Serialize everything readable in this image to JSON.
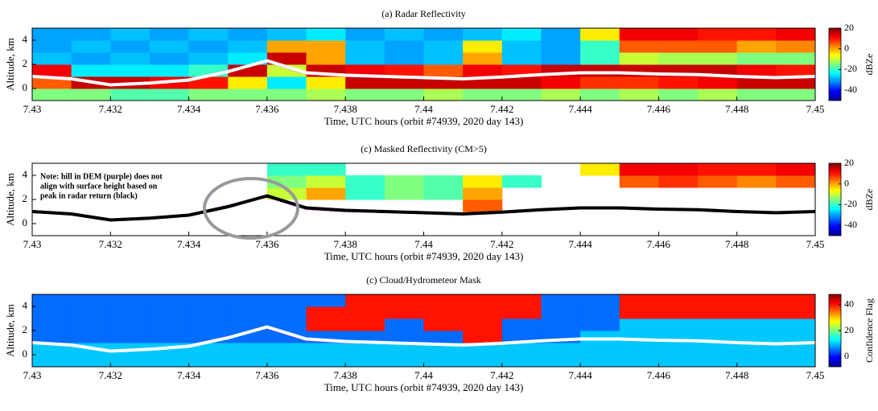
{
  "chart_data": [
    {
      "type": "heatmap",
      "title": "(a) Radar Reflectivity",
      "xlabel": "Time, UTC hours (orbit #74939, 2020 day 143)",
      "ylabel": "Altitude, km",
      "colorbar_label": "dBZe",
      "xlim": [
        7.43,
        7.45
      ],
      "xticks": [
        7.43,
        7.432,
        7.434,
        7.436,
        7.438,
        7.44,
        7.442,
        7.444,
        7.446,
        7.448,
        7.45
      ],
      "ylim": [
        -1,
        5
      ],
      "yticks": [
        0,
        2,
        4
      ],
      "clim": [
        -50,
        20
      ],
      "cticks": [
        -40,
        -20,
        0,
        20
      ],
      "xbins": [
        7.43,
        7.431,
        7.432,
        7.433,
        7.434,
        7.435,
        7.436,
        7.437,
        7.438,
        7.439,
        7.44,
        7.441,
        7.442,
        7.443,
        7.444,
        7.445,
        7.446,
        7.447,
        7.448,
        7.449,
        7.45
      ],
      "ybins": [
        -1,
        0,
        1,
        2,
        3,
        4,
        5
      ],
      "z": [
        [
          -15,
          -15,
          -18,
          -18,
          -15,
          -15,
          -15,
          -12,
          -15,
          -15,
          -12,
          -15,
          -15,
          -12,
          -15,
          -12,
          -15,
          -12,
          -15,
          -15
        ],
        [
          5,
          15,
          15,
          12,
          10,
          -5,
          -25,
          -5,
          15,
          15,
          15,
          15,
          15,
          12,
          8,
          8,
          10,
          12,
          15,
          15
        ],
        [
          12,
          -25,
          -25,
          -25,
          -20,
          15,
          -10,
          15,
          12,
          10,
          5,
          12,
          10,
          15,
          15,
          15,
          15,
          15,
          12,
          10
        ],
        [
          -28,
          -30,
          -28,
          -30,
          -28,
          -25,
          15,
          0,
          -28,
          -30,
          -28,
          0,
          -28,
          -30,
          -20,
          -10,
          -12,
          -12,
          -15,
          -15
        ],
        [
          -30,
          -28,
          -30,
          -28,
          -30,
          -28,
          0,
          0,
          -28,
          -30,
          -28,
          -5,
          -28,
          -30,
          -20,
          5,
          5,
          5,
          0,
          2
        ],
        [
          -30,
          -30,
          -28,
          -30,
          -28,
          -30,
          -28,
          -25,
          -30,
          -28,
          -30,
          -28,
          -25,
          -30,
          -5,
          12,
          12,
          10,
          10,
          12
        ]
      ],
      "x": [
        7.43,
        7.431,
        7.432,
        7.433,
        7.434,
        7.435,
        7.436,
        7.437,
        7.438,
        7.439,
        7.44,
        7.441,
        7.442,
        7.443,
        7.444,
        7.445,
        7.446,
        7.447,
        7.448,
        7.449,
        7.45
      ],
      "series": [
        {
          "color": "#ff00ff",
          "linestyle": "dotted",
          "values": [
            0.95,
            0.75,
            0.35,
            0.4,
            0.75,
            1.5,
            2.2,
            1.2,
            1.0,
            0.95,
            0.9,
            0.85,
            0.95,
            1.1,
            1.25,
            1.25,
            1.15,
            1.1,
            0.95,
            0.9,
            0.95
          ]
        },
        {
          "color": "#ffffff",
          "linestyle": "solid",
          "values": [
            1.0,
            0.8,
            0.3,
            0.45,
            0.7,
            1.4,
            2.3,
            1.3,
            1.1,
            1.0,
            0.9,
            0.8,
            0.95,
            1.15,
            1.3,
            1.3,
            1.2,
            1.15,
            1.0,
            0.9,
            1.0
          ]
        }
      ]
    },
    {
      "type": "heatmap",
      "title": "(c) Masked Reflectivity (CM>5)",
      "xlabel": "Time, UTC hours (orbit #74939, 2020 day 143)",
      "ylabel": "Altitude, km",
      "colorbar_label": "dBZe",
      "annotation": [
        "Note: hill in DEM (purple) does not",
        "align with surface height based on",
        "peak in radar return (black)"
      ],
      "xlim": [
        7.43,
        7.45
      ],
      "xticks": [
        7.43,
        7.432,
        7.434,
        7.436,
        7.438,
        7.44,
        7.442,
        7.444,
        7.446,
        7.448,
        7.45
      ],
      "ylim": [
        -1,
        5
      ],
      "yticks": [
        0,
        2,
        4
      ],
      "clim": [
        -50,
        20
      ],
      "cticks": [
        -40,
        -20,
        0,
        20
      ],
      "xbins": [
        7.43,
        7.431,
        7.432,
        7.433,
        7.434,
        7.435,
        7.436,
        7.437,
        7.438,
        7.439,
        7.44,
        7.441,
        7.442,
        7.443,
        7.444,
        7.445,
        7.446,
        7.447,
        7.448,
        7.449,
        7.45
      ],
      "ybins": [
        -1,
        0,
        1,
        2,
        3,
        4,
        5
      ],
      "z": [
        [
          null,
          null,
          null,
          null,
          null,
          null,
          null,
          null,
          null,
          null,
          null,
          null,
          null,
          null,
          null,
          null,
          null,
          null,
          null,
          null
        ],
        [
          null,
          null,
          null,
          null,
          null,
          null,
          null,
          null,
          null,
          null,
          null,
          null,
          null,
          null,
          null,
          null,
          null,
          null,
          null,
          null
        ],
        [
          null,
          null,
          null,
          null,
          null,
          null,
          null,
          null,
          null,
          null,
          null,
          5,
          null,
          null,
          null,
          null,
          null,
          null,
          null,
          null
        ],
        [
          null,
          null,
          null,
          null,
          null,
          null,
          -10,
          0,
          -20,
          -15,
          -18,
          0,
          null,
          null,
          null,
          null,
          null,
          null,
          null,
          null
        ],
        [
          null,
          null,
          null,
          null,
          null,
          null,
          -15,
          -10,
          -20,
          -15,
          -18,
          -5,
          -20,
          null,
          null,
          5,
          8,
          5,
          2,
          5
        ],
        [
          null,
          null,
          null,
          null,
          null,
          null,
          -20,
          -20,
          null,
          null,
          null,
          null,
          null,
          null,
          -5,
          12,
          12,
          10,
          10,
          12
        ]
      ],
      "x": [
        7.43,
        7.431,
        7.432,
        7.433,
        7.434,
        7.435,
        7.436,
        7.437,
        7.438,
        7.439,
        7.44,
        7.441,
        7.442,
        7.443,
        7.444,
        7.445,
        7.446,
        7.447,
        7.448,
        7.449,
        7.45
      ],
      "series": [
        {
          "color": "#ff00ff",
          "linestyle": "dotted",
          "values": [
            0.95,
            0.75,
            0.35,
            0.4,
            0.75,
            1.5,
            2.2,
            1.2,
            1.0,
            0.95,
            0.9,
            0.85,
            0.95,
            1.1,
            1.25,
            1.25,
            1.15,
            1.1,
            0.95,
            0.9,
            0.95
          ]
        },
        {
          "color": "#000000",
          "linestyle": "solid",
          "values": [
            1.0,
            0.8,
            0.3,
            0.45,
            0.7,
            1.4,
            2.3,
            1.3,
            1.1,
            1.0,
            0.9,
            0.8,
            0.95,
            1.15,
            1.3,
            1.3,
            1.2,
            1.15,
            1.0,
            0.9,
            1.0
          ]
        }
      ]
    },
    {
      "type": "heatmap",
      "title": "(c) Cloud/Hydrometeor Mask",
      "xlabel": "Time, UTC hours (orbit #74939, 2020 day 143)",
      "ylabel": "Altitude, km",
      "colorbar_label": "Confidence Flag",
      "xlim": [
        7.43,
        7.45
      ],
      "xticks": [
        7.43,
        7.432,
        7.434,
        7.436,
        7.438,
        7.44,
        7.442,
        7.444,
        7.446,
        7.448,
        7.45
      ],
      "ylim": [
        -1,
        5
      ],
      "yticks": [
        0,
        2,
        4
      ],
      "clim": [
        -8,
        48
      ],
      "cticks": [
        0,
        20,
        40
      ],
      "xbins": [
        7.43,
        7.431,
        7.432,
        7.433,
        7.434,
        7.435,
        7.436,
        7.437,
        7.438,
        7.439,
        7.44,
        7.441,
        7.442,
        7.443,
        7.444,
        7.445,
        7.446,
        7.447,
        7.448,
        7.449,
        7.45
      ],
      "ybins": [
        -1,
        0,
        1,
        2,
        3,
        4,
        5
      ],
      "z": [
        [
          10,
          10,
          10,
          10,
          10,
          10,
          10,
          10,
          10,
          10,
          10,
          10,
          10,
          10,
          10,
          10,
          10,
          10,
          10,
          10
        ],
        [
          10,
          10,
          10,
          10,
          10,
          10,
          10,
          10,
          10,
          10,
          10,
          10,
          10,
          10,
          10,
          10,
          10,
          10,
          10,
          10
        ],
        [
          5,
          5,
          5,
          5,
          5,
          5,
          5,
          5,
          5,
          5,
          5,
          40,
          5,
          5,
          10,
          10,
          10,
          10,
          10,
          10
        ],
        [
          5,
          5,
          5,
          5,
          5,
          5,
          5,
          40,
          40,
          5,
          40,
          40,
          5,
          5,
          5,
          10,
          10,
          10,
          10,
          10
        ],
        [
          5,
          5,
          5,
          5,
          5,
          5,
          5,
          40,
          40,
          40,
          40,
          40,
          40,
          5,
          5,
          40,
          40,
          40,
          40,
          40
        ],
        [
          5,
          5,
          5,
          5,
          5,
          5,
          5,
          5,
          40,
          40,
          40,
          40,
          40,
          5,
          5,
          40,
          40,
          40,
          40,
          40
        ]
      ],
      "x": [
        7.43,
        7.431,
        7.432,
        7.433,
        7.434,
        7.435,
        7.436,
        7.437,
        7.438,
        7.439,
        7.44,
        7.441,
        7.442,
        7.443,
        7.444,
        7.445,
        7.446,
        7.447,
        7.448,
        7.449,
        7.45
      ],
      "series": [
        {
          "color": "#ff00ff",
          "linestyle": "dotted",
          "values": [
            0.95,
            0.75,
            0.35,
            0.4,
            0.75,
            1.5,
            2.2,
            1.2,
            1.0,
            0.95,
            0.9,
            0.85,
            0.95,
            1.1,
            1.25,
            1.25,
            1.15,
            1.1,
            0.95,
            0.9,
            0.95
          ]
        },
        {
          "color": "#ffffff",
          "linestyle": "solid",
          "values": [
            1.0,
            0.8,
            0.3,
            0.45,
            0.7,
            1.4,
            2.3,
            1.3,
            1.1,
            1.0,
            0.9,
            0.8,
            0.95,
            1.15,
            1.3,
            1.3,
            1.2,
            1.15,
            1.0,
            0.9,
            1.0
          ]
        }
      ]
    }
  ]
}
